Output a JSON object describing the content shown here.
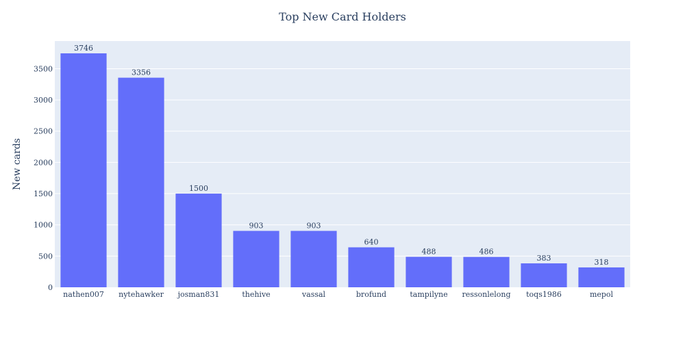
{
  "chart_data": {
    "type": "bar",
    "title": "Top New Card Holders",
    "xlabel": "",
    "ylabel": "New cards",
    "categories": [
      "nathen007",
      "nytehawker",
      "josman831",
      "thehive",
      "vassal",
      "brofund",
      "tampilyne",
      "ressonlelong",
      "toqs1986",
      "mepol"
    ],
    "values": [
      3746,
      3356,
      1500,
      903,
      903,
      640,
      488,
      486,
      383,
      318
    ],
    "ylim": [
      0,
      3943
    ],
    "yticks": [
      0,
      500,
      1000,
      1500,
      2000,
      2500,
      3000,
      3500
    ],
    "grid": true,
    "colors": {
      "bar": "#636efa",
      "plot_bg": "#e5ecf6",
      "grid": "#ffffff",
      "text": "#2a3f5f"
    }
  }
}
